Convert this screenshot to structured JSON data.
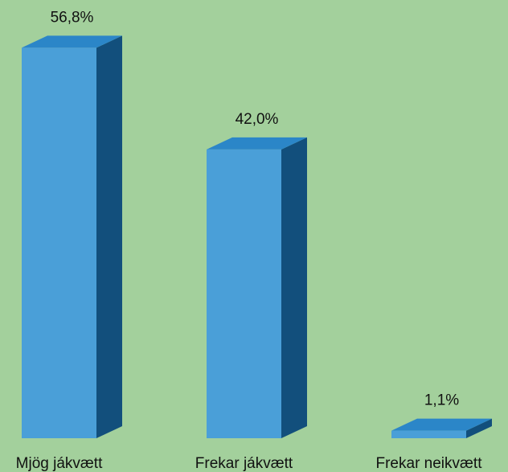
{
  "chart_data": {
    "type": "bar",
    "style": "3d-column",
    "categories": [
      "Mjög jákvætt",
      "Frekar jákvætt",
      "Frekar neikvætt"
    ],
    "values": [
      56.8,
      42.0,
      1.1
    ],
    "value_labels": [
      "56,8%",
      "42,0%",
      "1,1%"
    ],
    "unit": "%",
    "title": "",
    "xlabel": "",
    "ylabel": "",
    "ylim": [
      0,
      60
    ],
    "grid": false,
    "legend": "none"
  },
  "colors": {
    "background": "#a3d09c",
    "bar_front": "#4a9fd8",
    "bar_side": "#124f7c",
    "bar_top": "#2b86c8"
  }
}
